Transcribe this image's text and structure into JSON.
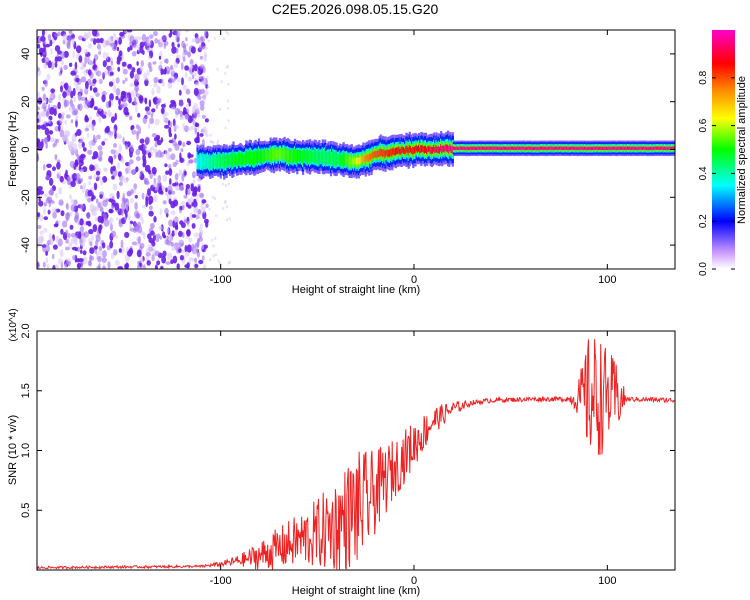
{
  "title": "C2E5.2026.098.05.15.G20",
  "colors": {
    "snr_line": "#ee2222",
    "frame": "#000000"
  },
  "chart_data": [
    {
      "type": "heatmap",
      "title": "C2E5.2026.098.05.15.G20",
      "xlabel": "Height of straight line (km)",
      "ylabel": "Frequency (Hz)",
      "xlim": [
        -195,
        135
      ],
      "ylim": [
        -50,
        50
      ],
      "x_ticks": [
        -100,
        0,
        100
      ],
      "x_tick_labels": [
        "-100",
        "0",
        "100"
      ],
      "y_ticks": [
        -40,
        -20,
        0,
        20,
        40
      ],
      "y_tick_labels": [
        "-40",
        "-20",
        "0",
        "20",
        "40"
      ],
      "colorbar": {
        "label": "Normalized spectral amplitude",
        "range": [
          0,
          1
        ],
        "ticks": [
          0.0,
          0.2,
          0.4,
          0.6,
          0.8
        ],
        "tick_labels": [
          "0.0",
          "0.2",
          "0.4",
          "0.6",
          "0.8"
        ],
        "stops": [
          "#ffffff",
          "#cc99ff",
          "#0000ff",
          "#00ffff",
          "#00ff00",
          "#ffff00",
          "#ff8800",
          "#ff0000",
          "#ff00cc"
        ]
      },
      "noise_region_x": [
        -195,
        -107
      ],
      "ridge": {
        "x": [
          -112,
          -100,
          -90,
          -80,
          -70,
          -60,
          -50,
          -40,
          -30,
          -25,
          -20,
          -10,
          0,
          10,
          20,
          40,
          60,
          80,
          100,
          135
        ],
        "freq": [
          -5,
          -5,
          -4,
          -3,
          -2,
          -3,
          -3,
          -4,
          -5,
          -4,
          -2,
          -1,
          0,
          0,
          0.5,
          0.5,
          0.5,
          0.5,
          0.5,
          0.5
        ],
        "amplitude": [
          0.35,
          0.45,
          0.5,
          0.5,
          0.55,
          0.5,
          0.45,
          0.45,
          0.6,
          0.75,
          0.8,
          0.85,
          0.85,
          0.9,
          0.95,
          0.95,
          0.95,
          0.95,
          0.95,
          0.95
        ]
      }
    },
    {
      "type": "line",
      "xlabel": "Height of straight line (km)",
      "ylabel": "SNR (10 * v/v)",
      "y_scale_label": "(x10^4)",
      "xlim": [
        -195,
        135
      ],
      "ylim": [
        0,
        2.0
      ],
      "x_ticks": [
        -100,
        0,
        100
      ],
      "x_tick_labels": [
        "-100",
        "0",
        "100"
      ],
      "y_ticks": [
        0.5,
        1.0,
        1.5,
        2.0
      ],
      "y_tick_labels": [
        "0.5",
        "1.0",
        "1.5",
        "2.0"
      ],
      "series": [
        {
          "name": "SNR",
          "envelope": {
            "x": [
              -195,
              -110,
              -100,
              -90,
              -80,
              -70,
              -60,
              -50,
              -40,
              -30,
              -25,
              -20,
              -10,
              0,
              10,
              20,
              30,
              40,
              60,
              80,
              85,
              90,
              95,
              100,
              105,
              110,
              135
            ],
            "mean": [
              0.02,
              0.03,
              0.05,
              0.08,
              0.12,
              0.18,
              0.25,
              0.3,
              0.38,
              0.5,
              0.55,
              0.65,
              0.85,
              1.05,
              1.25,
              1.35,
              1.4,
              1.42,
              1.43,
              1.43,
              1.44,
              1.45,
              1.45,
              1.45,
              1.44,
              1.43,
              1.42
            ],
            "spread": [
              0.01,
              0.01,
              0.02,
              0.05,
              0.12,
              0.18,
              0.22,
              0.3,
              0.4,
              0.5,
              0.45,
              0.35,
              0.25,
              0.2,
              0.12,
              0.06,
              0.02,
              0.02,
              0.02,
              0.02,
              0.15,
              0.5,
              0.55,
              0.4,
              0.3,
              0.02,
              0.02
            ]
          }
        }
      ]
    }
  ]
}
